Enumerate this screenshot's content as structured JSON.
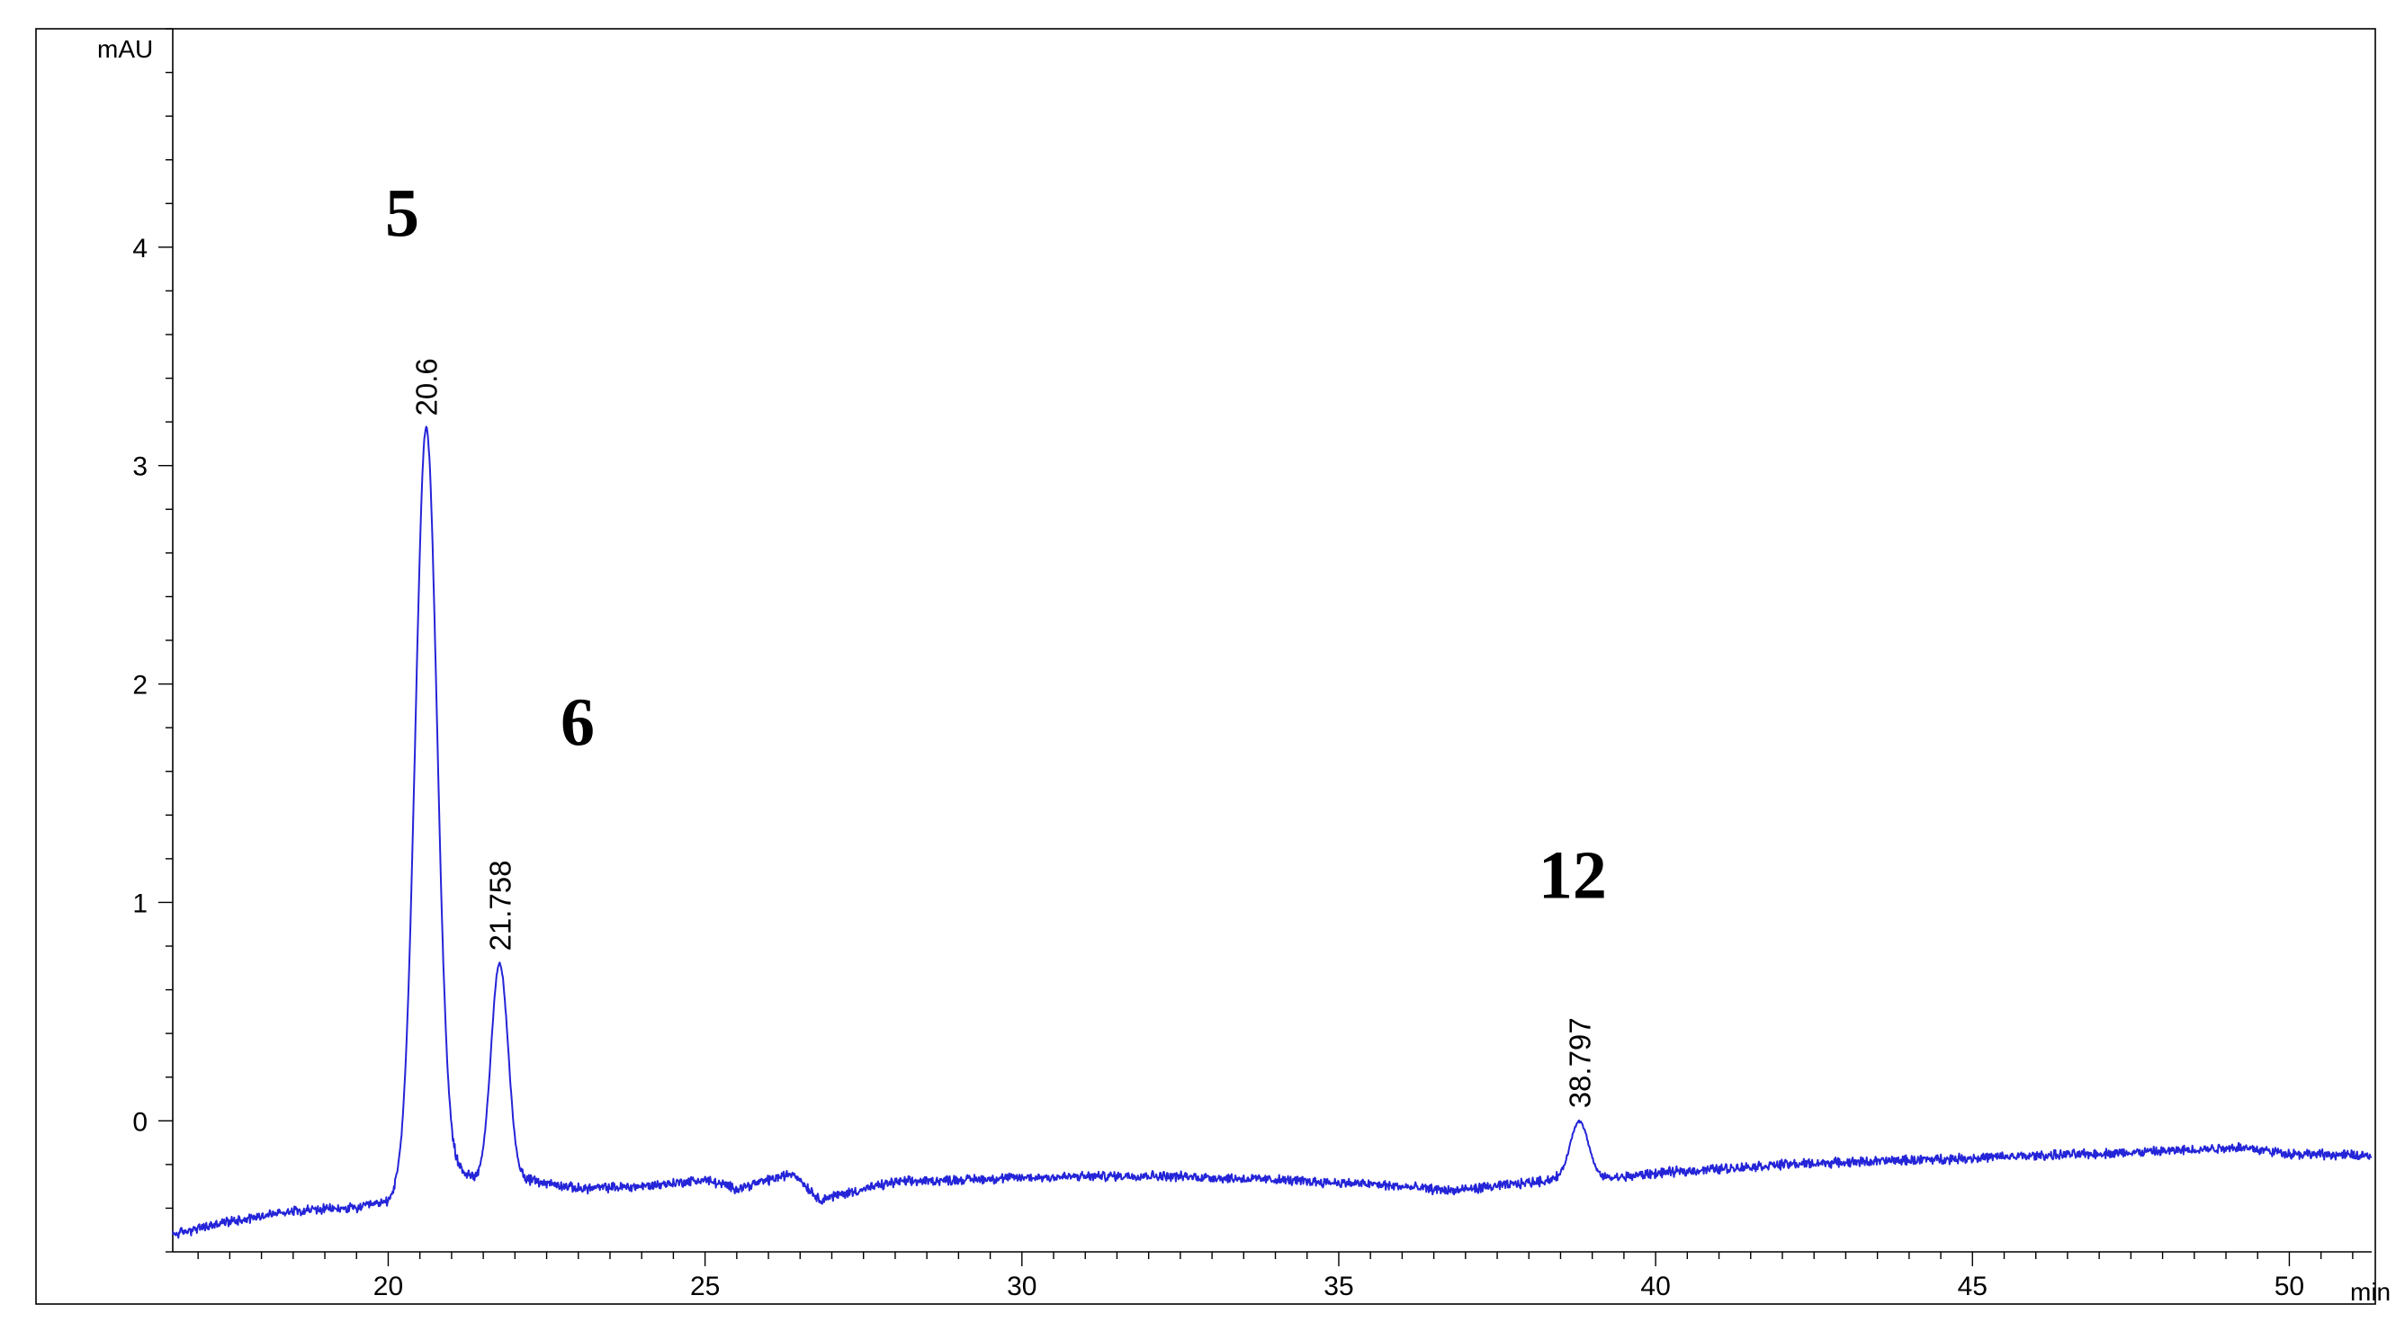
{
  "chart_data": {
    "type": "line",
    "title": "",
    "xlabel": "",
    "ylabel": "",
    "x_unit": "min",
    "y_unit": "mAU",
    "xlim": [
      16.6,
      51.3
    ],
    "ylim": [
      -0.6,
      5.0
    ],
    "x_ticks": [
      20,
      25,
      30,
      35,
      40,
      45,
      50
    ],
    "x_tick_labels": [
      "20",
      "25",
      "30",
      "35",
      "40",
      "45",
      "50"
    ],
    "y_ticks": [
      0,
      1,
      2,
      3,
      4
    ],
    "y_tick_labels": [
      "0",
      "1",
      "2",
      "3",
      "4"
    ],
    "grid": false,
    "line_color": "#2424d8",
    "peaks": [
      {
        "rt": 20.6,
        "label": "20.6",
        "height": 3.17,
        "sigma": 0.17,
        "compound": "5"
      },
      {
        "rt": 21.758,
        "label": "21.758",
        "height": 0.72,
        "sigma": 0.135,
        "compound": "6"
      },
      {
        "rt": 38.797,
        "label": "38.797",
        "height": 0.0,
        "sigma": 0.14,
        "compound": "12"
      }
    ],
    "baseline": [
      [
        16.6,
        -0.52
      ],
      [
        17.5,
        -0.46
      ],
      [
        18.5,
        -0.41
      ],
      [
        19.5,
        -0.4
      ],
      [
        20.0,
        -0.37
      ],
      [
        20.3,
        -0.28
      ],
      [
        21.1,
        -0.23
      ],
      [
        21.5,
        -0.28
      ],
      [
        22.2,
        -0.27
      ],
      [
        23.0,
        -0.31
      ],
      [
        24.0,
        -0.3
      ],
      [
        25.0,
        -0.27
      ],
      [
        25.5,
        -0.31
      ],
      [
        26.4,
        -0.24
      ],
      [
        26.8,
        -0.36
      ],
      [
        28.0,
        -0.28
      ],
      [
        30.0,
        -0.26
      ],
      [
        32.0,
        -0.25
      ],
      [
        34.0,
        -0.27
      ],
      [
        35.5,
        -0.29
      ],
      [
        36.8,
        -0.32
      ],
      [
        37.8,
        -0.29
      ],
      [
        38.6,
        -0.26
      ],
      [
        39.4,
        -0.26
      ],
      [
        40.0,
        -0.24
      ],
      [
        42.0,
        -0.2
      ],
      [
        44.0,
        -0.18
      ],
      [
        46.0,
        -0.16
      ],
      [
        48.0,
        -0.14
      ],
      [
        49.2,
        -0.12
      ],
      [
        50.0,
        -0.15
      ],
      [
        51.3,
        -0.16
      ]
    ],
    "compound_labels": [
      {
        "text": "5",
        "x": 19.95,
        "y": 4.05
      },
      {
        "text": "6",
        "x": 22.72,
        "y": 1.72
      },
      {
        "text": "12",
        "x": 38.15,
        "y": 1.02
      }
    ]
  }
}
